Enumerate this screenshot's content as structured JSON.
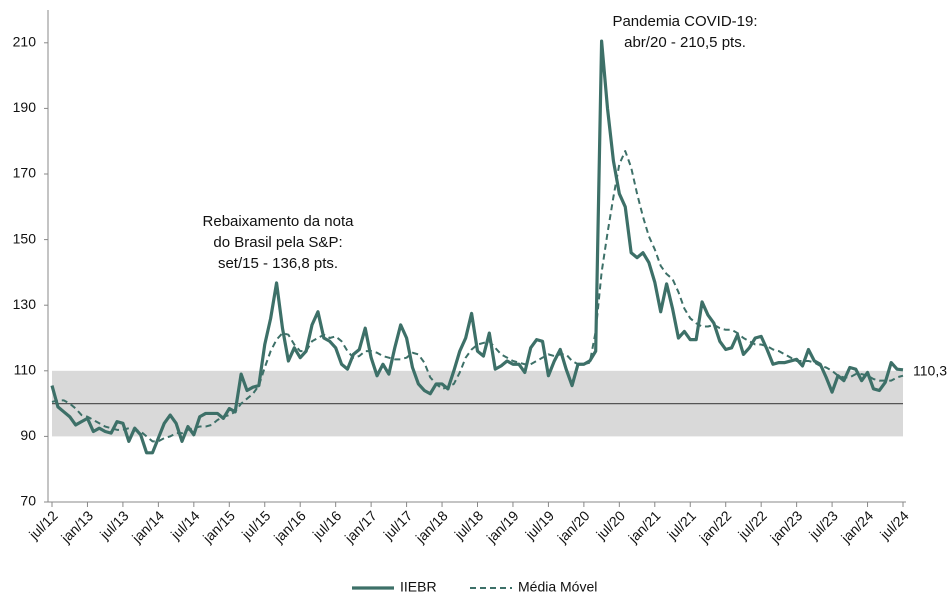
{
  "chart_data": {
    "type": "line",
    "categories": [
      "jul/12",
      null,
      null,
      null,
      null,
      null,
      "jan/13",
      null,
      null,
      null,
      null,
      null,
      "jul/13",
      null,
      null,
      null,
      null,
      null,
      "jan/14",
      null,
      null,
      null,
      null,
      null,
      "jul/14",
      null,
      null,
      null,
      null,
      null,
      "jan/15",
      null,
      null,
      null,
      null,
      null,
      "jul/15",
      null,
      null,
      null,
      null,
      null,
      "jan/16",
      null,
      null,
      null,
      null,
      null,
      "jul/16",
      null,
      null,
      null,
      null,
      null,
      "jan/17",
      null,
      null,
      null,
      null,
      null,
      "jul/17",
      null,
      null,
      null,
      null,
      null,
      "jan/18",
      null,
      null,
      null,
      null,
      null,
      "jul/18",
      null,
      null,
      null,
      null,
      null,
      "jan/19",
      null,
      null,
      null,
      null,
      null,
      "jul/19",
      null,
      null,
      null,
      null,
      null,
      "jan/20",
      null,
      null,
      null,
      null,
      null,
      "jul/20",
      null,
      null,
      null,
      null,
      null,
      "jan/21",
      null,
      null,
      null,
      null,
      null,
      "jul/21",
      null,
      null,
      null,
      null,
      null,
      "jan/22",
      null,
      null,
      null,
      null,
      null,
      "jul/22",
      null,
      null,
      null,
      null,
      null,
      "jan/23",
      null,
      null,
      null,
      null,
      null,
      "jul/23",
      null,
      null,
      null,
      null,
      null,
      "jan/24",
      null,
      null,
      null,
      null,
      null,
      "jul/24"
    ],
    "series": [
      {
        "name": "IIEBR",
        "color": "#3d7068",
        "dashed": false,
        "end_label": "110,3",
        "values": [
          105.5,
          99,
          97.5,
          96,
          93.5,
          94.5,
          95.5,
          91.5,
          92.5,
          91.5,
          91,
          94.5,
          94,
          88.5,
          92.5,
          90.5,
          85,
          85,
          89.5,
          94,
          96.5,
          94,
          88.5,
          93,
          90.5,
          96,
          97,
          97,
          97,
          95.5,
          98.5,
          97.5,
          109,
          104,
          105,
          105.5,
          118,
          126,
          136.8,
          123,
          113,
          117,
          114,
          116,
          124,
          128,
          120,
          119,
          117,
          112,
          110.5,
          115,
          116.5,
          123,
          114,
          108.5,
          112,
          109,
          117,
          124,
          120,
          111,
          106,
          104,
          103,
          106,
          106,
          104.5,
          110,
          116,
          120,
          127.5,
          116,
          114.5,
          121.5,
          110.5,
          111.5,
          113,
          112,
          112,
          109.5,
          117,
          119.5,
          119,
          108.5,
          113,
          116.5,
          110.5,
          105.5,
          112,
          112,
          113,
          116,
          210.5,
          190,
          174,
          164,
          160,
          146,
          144.5,
          146,
          143,
          137,
          128,
          136.5,
          129,
          120,
          122,
          119.5,
          119.5,
          131,
          127,
          124.5,
          119,
          116.5,
          117,
          121,
          115,
          117,
          120,
          120.5,
          116.5,
          112,
          112.5,
          112.5,
          113,
          113.5,
          111.5,
          116.5,
          113,
          112,
          108,
          103.5,
          108.5,
          107,
          111,
          110.5,
          107,
          109.5,
          104.5,
          104,
          106.5,
          112.5,
          110.5,
          110.3
        ]
      },
      {
        "name": "Média Móvel",
        "color": "#3d7068",
        "dashed": true,
        "values": [
          100.5,
          101,
          101,
          100,
          98.5,
          96.5,
          96,
          95,
          94,
          93,
          92.5,
          92,
          92,
          92.5,
          92,
          91.5,
          90,
          88.5,
          88.5,
          89.5,
          90,
          91,
          91,
          92,
          92.5,
          93,
          93,
          93.5,
          95,
          96,
          96.5,
          97.5,
          100,
          101.5,
          103,
          105.5,
          111,
          116,
          119.5,
          121.5,
          121,
          118,
          116,
          116,
          119,
          120,
          121,
          120,
          120.5,
          119,
          116,
          114,
          114.5,
          116,
          116,
          115.5,
          114.5,
          114,
          113.5,
          113.5,
          114,
          115.5,
          115,
          112.5,
          108,
          106,
          104.5,
          105,
          106,
          109.5,
          114,
          116.5,
          118,
          118.5,
          119,
          117,
          115,
          114,
          113,
          112.5,
          112,
          112,
          113,
          114,
          115,
          114.5,
          115,
          115,
          113,
          112,
          112,
          112.5,
          122,
          140,
          152,
          163,
          173,
          177,
          172,
          164,
          157,
          151,
          147,
          142,
          139.5,
          138,
          134,
          129,
          126,
          124.5,
          123.5,
          123.5,
          124,
          123,
          122.5,
          122.5,
          121.5,
          120,
          119,
          118,
          118,
          117.5,
          116.5,
          116,
          115,
          114,
          113,
          113,
          113,
          112.5,
          111.5,
          111,
          110,
          108.5,
          108,
          108,
          109,
          109,
          108.5,
          107.5,
          107,
          107,
          107,
          108,
          108.5
        ]
      }
    ],
    "ylim": [
      70,
      220
    ],
    "yticks": [
      70,
      90,
      110,
      130,
      150,
      170,
      190,
      210
    ],
    "band": [
      90,
      110
    ],
    "reference_line": 100,
    "annotations": [
      {
        "lines": [
          "Rebaixamento da nota",
          "do Brasil pela S&P:",
          "set/15 - 136,8 pts."
        ]
      },
      {
        "lines": [
          "Pandemia COVID-19:",
          "abr/20 - 210,5 pts."
        ]
      }
    ]
  }
}
